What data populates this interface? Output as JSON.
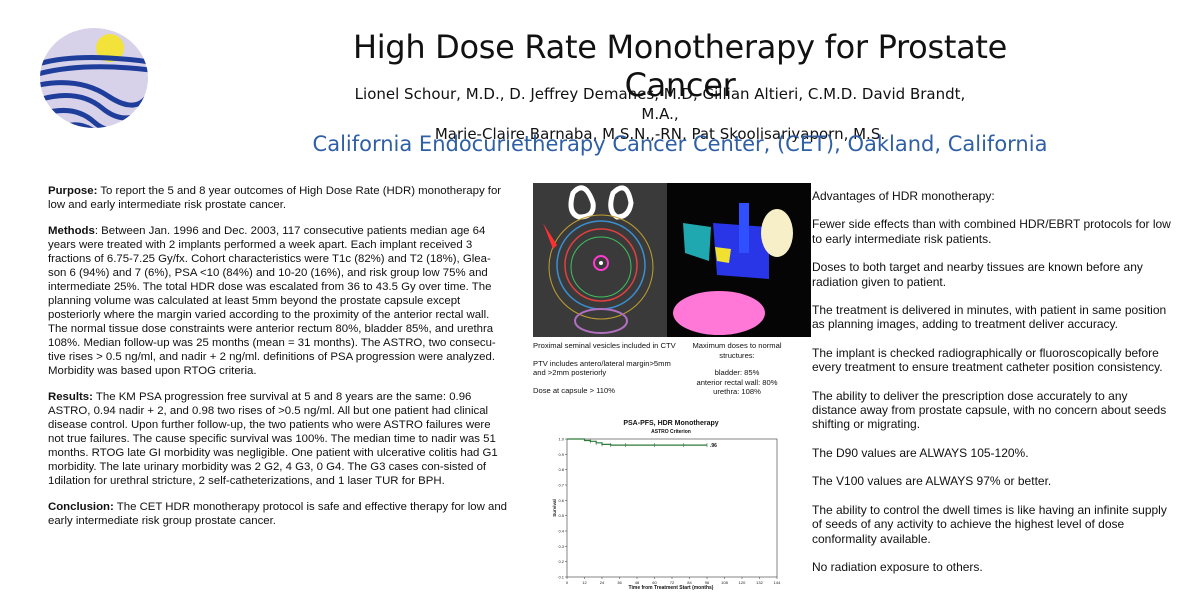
{
  "header": {
    "title": "High Dose Rate Monotherapy for Prostate Cancer",
    "authors_line1": "Lionel Schour, M.D., D. Jeffrey Demanes, M.D, Gillian Altieri, C.M.D. David Brandt, M.A.,",
    "authors_line2": "Marie-Claire Barnaba, M.S.N.,-RN, Pat Skoolisariyaporn, M.S.",
    "institution": "California Endocurietherapy Cancer Center, (CET), Oakland, California"
  },
  "purpose": {
    "heading": "Purpose:",
    "text": " To report the 5 and 8 year outcomes of High Dose Rate (HDR) monotherapy for low and early intermediate risk prostate cancer."
  },
  "methods": {
    "heading": "Methods",
    "text": ": Between Jan. 1996 and Dec. 2003, 117 consecutive patients median age 64 years were treated with 2 implants performed a week apart. Each implant received 3 fractions of 6.75-7.25 Gy/fx.  Cohort characteristics were T1c (82%) and T2 (18%), Glea-son 6 (94%) and 7 (6%), PSA <10 (84%) and 10-20 (16%), and risk group low 75% and intermediate 25%.  The total HDR dose was escalated from 36 to 43.5 Gy over time. The planning volume was calculated at least 5mm beyond the prostate capsule except posteriorly where the margin varied according to the proximity of the anterior rectal wall. The normal tissue dose constraints were anterior rectum 80%, bladder 85%, and urethra 108%. Median follow-up was 25 months (mean = 31 months). The ASTRO, two consecu-tive rises > 0.5 ng/ml, and nadir + 2 ng/ml. definitions of PSA progression were analyzed. Morbidity was based upon RTOG criteria."
  },
  "results": {
    "heading": "Results:",
    "text": " The KM PSA progression free survival at 5 and 8 years are the same: 0.96 ASTRO, 0.94 nadir + 2, and 0.98 two rises of >0.5 ng/ml. All but one patient had clinical disease control. Upon further follow-up, the two patients who were ASTRO failures were not true failures. The cause specific survival was 100%.  The median time to nadir was 51 months.   RTOG late GI morbidity was negligible.  One patient with ulcerative colitis had G1 morbidity.  The late urinary morbidity was 2 G2,  4 G3, 0 G4.  The G3 cases con-sisted of 1dilation for urethral stricture, 2 self-catheterizations, and 1 laser TUR for BPH."
  },
  "conclusion": {
    "heading": "Conclusion:",
    "text": " The CET HDR monotherapy protocol is safe and effective therapy for low and early intermediate risk group prostate cancer."
  },
  "advantages": [
    "Advantages of HDR monotherapy:",
    "Fewer side effects than with combined HDR/EBRT protocols for low to early intermediate risk patients.",
    "Doses to both target and nearby tissues are known before any radiation given to patient.",
    "The treatment is delivered in minutes, with patient in same position as planning images, adding to treatment deliver accuracy.",
    "The implant is checked radiographically or fluoroscopically before every treatment to ensure treatment catheter position consistency.",
    "The ability to deliver the prescription dose accurately to any distance away from prostate capsule, with no concern about seeds shifting or migrating.",
    "The D90 values are ALWAYS 105-120%.",
    "The V100 values are ALWAYS 97% or better.",
    "The ability to control the dwell times is like having an infinite supply of seeds of any activity to achieve the highest level of dose conformality available.",
    "No radiation exposure to others."
  ],
  "image_captions": {
    "left_line1": "Proximal seminal vesicles included in CTV",
    "left_line2": "PTV includes antero/lateral margin>5mm",
    "left_line3": "and >2mm posteriorly",
    "left_line4": "Dose at capsule > 110%",
    "right_line1": "Maximum doses to normal",
    "right_line2": "structures:",
    "right_line3": "bladder: 85%",
    "right_line4": "anterior rectal wall: 80%",
    "right_line5": "urethra: 108%"
  },
  "chart_data": {
    "type": "line",
    "title": "PSA-PFS, HDR Monotherapy",
    "subtitle": "ASTRO Criterion",
    "xlabel": "Time from Treatment Start (months)",
    "ylabel": "Survival",
    "x_ticks": [
      "0",
      "12",
      "24",
      "36",
      "48",
      "60",
      "72",
      "84",
      "96",
      "108",
      "120",
      "132",
      "144"
    ],
    "y_ticks": [
      "0.1",
      "0.2",
      "0.3",
      "0.4",
      "0.5",
      "0.6",
      "0.7",
      "0.8",
      "0.9",
      "1.0"
    ],
    "xlim": [
      0,
      144
    ],
    "ylim": [
      0.1,
      1.0
    ],
    "annotation": ".96",
    "series": [
      {
        "x": [
          0,
          8,
          12,
          16,
          20,
          24,
          30,
          40,
          60,
          80,
          96
        ],
        "y": [
          1.0,
          1.0,
          0.99,
          0.985,
          0.975,
          0.965,
          0.96,
          0.96,
          0.96,
          0.96,
          0.96
        ]
      }
    ],
    "colors": {
      "line": "#2d7a3a"
    }
  }
}
